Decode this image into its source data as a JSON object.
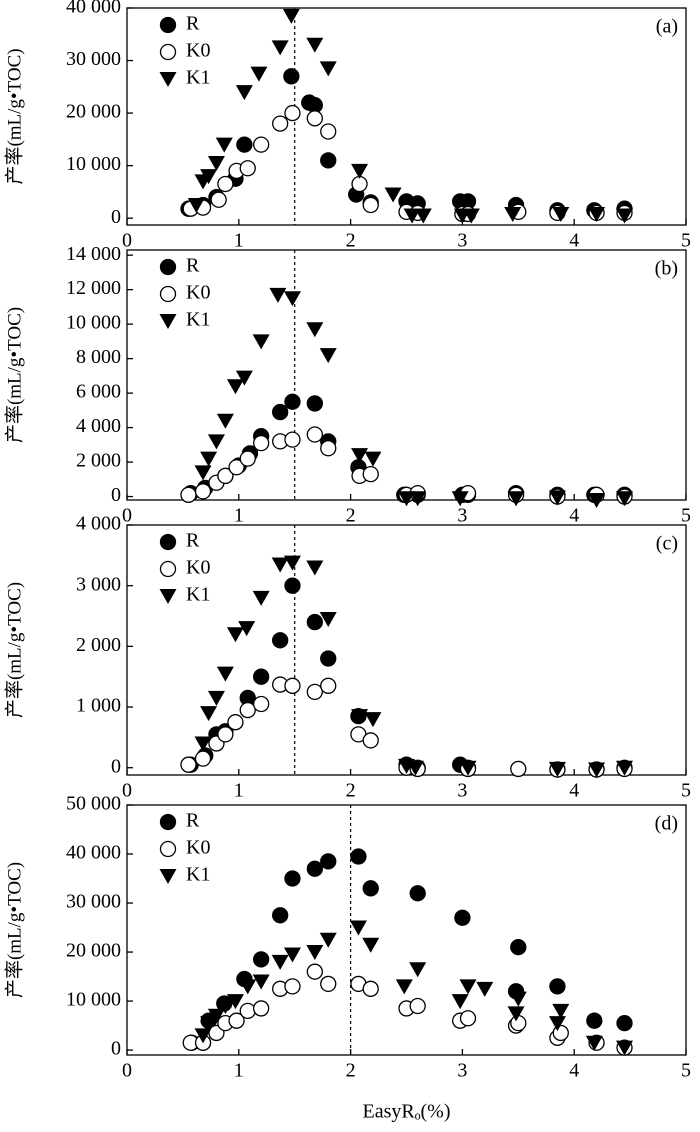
{
  "chart_data": [
    {
      "type": "scatter",
      "label": "(a)",
      "ylabel": "产率(mL/g•TOC)",
      "xlim": [
        0,
        5
      ],
      "ylim": [
        -1300,
        40000
      ],
      "xticks": [
        0,
        1,
        2,
        3,
        4,
        5
      ],
      "yticks": [
        0,
        {
          "value": 10000,
          "label": "10 000"
        },
        {
          "value": 20000,
          "label": "20 000"
        },
        {
          "value": 30000,
          "label": "30 000"
        },
        {
          "value": 40000,
          "label": "40 000"
        }
      ],
      "vline": 1.5,
      "series": [
        {
          "name": "R",
          "marker": "filled-circle",
          "color": "#000000",
          "x": [
            0.55,
            0.68,
            0.8,
            0.97,
            1.05,
            1.47,
            1.63,
            1.68,
            1.8,
            2.05,
            2.18,
            2.5,
            2.6,
            2.98,
            3.05,
            3.48,
            3.85,
            4.18,
            4.45
          ],
          "values": [
            1800,
            2500,
            4000,
            7500,
            14000,
            27000,
            22000,
            21500,
            11000,
            4500,
            3000,
            3200,
            2800,
            3200,
            3200,
            2500,
            1500,
            1500,
            1800
          ]
        },
        {
          "name": "K0",
          "marker": "open-circle",
          "color": "#000000",
          "x": [
            0.57,
            0.68,
            0.82,
            0.88,
            0.98,
            1.08,
            1.2,
            1.37,
            1.48,
            1.68,
            1.8,
            2.08,
            2.18,
            2.5,
            2.6,
            3.0,
            3.05,
            3.5,
            3.85,
            4.2,
            4.45
          ],
          "values": [
            1800,
            2000,
            3500,
            6500,
            9000,
            9500,
            14000,
            18000,
            20000,
            19000,
            16500,
            6500,
            2500,
            1200,
            1000,
            800,
            800,
            1200,
            1000,
            1000,
            1000
          ]
        },
        {
          "name": "K1",
          "marker": "down-triangle",
          "color": "#000000",
          "x": [
            0.62,
            0.68,
            0.73,
            0.8,
            0.87,
            1.05,
            1.18,
            1.37,
            1.47,
            1.68,
            1.8,
            2.08,
            2.38,
            2.55,
            2.65,
            3.0,
            3.08,
            3.45,
            3.88,
            4.2,
            4.45
          ],
          "values": [
            2500,
            7000,
            8000,
            10500,
            14000,
            24000,
            27500,
            32500,
            38500,
            33000,
            28500,
            9000,
            4500,
            500,
            500,
            500,
            500,
            800,
            800,
            800,
            500
          ]
        }
      ]
    },
    {
      "type": "scatter",
      "label": "(b)",
      "ylabel": "产率(mL/g•TOC)",
      "xlim": [
        0,
        5
      ],
      "ylim": [
        -200,
        14300
      ],
      "xticks": [
        0,
        1,
        2,
        3,
        4,
        5
      ],
      "yticks": [
        0,
        {
          "value": 2000,
          "label": "2 000"
        },
        {
          "value": 4000,
          "label": "4 000"
        },
        {
          "value": 6000,
          "label": "6 000"
        },
        {
          "value": 8000,
          "label": "8 000"
        },
        {
          "value": 10000,
          "label": "10 000"
        },
        {
          "value": 12000,
          "label": "12 000"
        },
        {
          "value": 14000,
          "label": "14 000"
        }
      ],
      "vline": 1.5,
      "series": [
        {
          "name": "R",
          "marker": "filled-circle",
          "color": "#000000",
          "x": [
            0.57,
            0.7,
            0.88,
            1.0,
            1.1,
            1.2,
            1.37,
            1.48,
            1.68,
            1.8,
            2.07,
            2.48,
            2.6,
            3.0,
            3.05,
            3.48,
            3.85,
            4.18,
            4.45
          ],
          "values": [
            200,
            500,
            1200,
            1800,
            2500,
            3500,
            4900,
            5500,
            5400,
            3200,
            1700,
            100,
            100,
            100,
            100,
            200,
            100,
            100,
            100
          ]
        },
        {
          "name": "K0",
          "marker": "open-circle",
          "color": "#000000",
          "x": [
            0.55,
            0.68,
            0.8,
            0.88,
            0.98,
            1.08,
            1.2,
            1.37,
            1.48,
            1.68,
            1.8,
            2.08,
            2.18,
            2.5,
            2.6,
            3.05,
            3.48,
            3.85,
            4.2,
            4.45
          ],
          "values": [
            100,
            300,
            800,
            1200,
            1700,
            2200,
            3100,
            3200,
            3300,
            3600,
            2800,
            1200,
            1300,
            100,
            200,
            200,
            100,
            0,
            100,
            0
          ]
        },
        {
          "name": "K1",
          "marker": "down-triangle",
          "color": "#000000",
          "x": [
            0.68,
            0.73,
            0.8,
            0.88,
            0.97,
            1.05,
            1.2,
            1.35,
            1.48,
            1.68,
            1.8,
            2.08,
            2.2,
            2.5,
            2.6,
            2.98,
            3.48,
            3.85,
            4.2,
            4.45
          ],
          "values": [
            1400,
            2200,
            3200,
            4400,
            6400,
            6900,
            9000,
            11700,
            11500,
            9700,
            8200,
            2400,
            2200,
            -100,
            -100,
            -100,
            -100,
            -50,
            -200,
            -100
          ]
        }
      ]
    },
    {
      "type": "scatter",
      "label": "(c)",
      "ylabel": "产率(mL/g•TOC)",
      "xlim": [
        0,
        5
      ],
      "ylim": [
        -120,
        4000
      ],
      "xticks": [
        0,
        1,
        2,
        3,
        4,
        5
      ],
      "yticks": [
        0,
        {
          "value": 1000,
          "label": "1 000"
        },
        {
          "value": 2000,
          "label": "2 000"
        },
        {
          "value": 3000,
          "label": "3 000"
        },
        {
          "value": 4000,
          "label": "4 000"
        }
      ],
      "vline": 1.5,
      "series": [
        {
          "name": "R",
          "marker": "filled-circle",
          "color": "#000000",
          "x": [
            0.57,
            0.7,
            0.8,
            0.88,
            1.08,
            1.2,
            1.37,
            1.48,
            1.68,
            1.8,
            2.07,
            2.5,
            2.6,
            2.98,
            3.05,
            3.85,
            4.2,
            4.45
          ],
          "values": [
            50,
            200,
            550,
            600,
            1150,
            1500,
            2100,
            3000,
            2400,
            1800,
            850,
            50,
            0,
            50,
            0,
            -30,
            -30,
            0
          ]
        },
        {
          "name": "K0",
          "marker": "open-circle",
          "color": "#000000",
          "x": [
            0.55,
            0.68,
            0.8,
            0.88,
            0.97,
            1.08,
            1.2,
            1.37,
            1.48,
            1.68,
            1.8,
            2.07,
            2.18,
            2.5,
            2.6,
            3.05,
            3.5,
            3.85,
            4.2,
            4.45
          ],
          "values": [
            50,
            150,
            400,
            550,
            750,
            950,
            1050,
            1370,
            1350,
            1250,
            1350,
            550,
            450,
            0,
            -20,
            -20,
            -20,
            -30,
            -30,
            -20
          ]
        },
        {
          "name": "K1",
          "marker": "down-triangle",
          "color": "#000000",
          "x": [
            0.68,
            0.73,
            0.8,
            0.88,
            0.97,
            1.07,
            1.2,
            1.37,
            1.48,
            1.68,
            1.8,
            2.08,
            2.2,
            2.5,
            2.58,
            3.05,
            3.85,
            4.2,
            4.45
          ],
          "values": [
            400,
            900,
            1150,
            1550,
            2200,
            2300,
            2800,
            3350,
            3380,
            3300,
            2450,
            850,
            800,
            30,
            0,
            0,
            -20,
            -30,
            0
          ]
        }
      ]
    },
    {
      "type": "scatter",
      "label": "(d)",
      "ylabel": "产率(mL/g•TOC)",
      "xlabel": "EasyRₒ(%)",
      "xlim": [
        0,
        5
      ],
      "ylim": [
        -1000,
        50000
      ],
      "xticks": [
        0,
        1,
        2,
        3,
        4,
        5
      ],
      "yticks": [
        0,
        {
          "value": 10000,
          "label": "10 000"
        },
        {
          "value": 20000,
          "label": "20 000"
        },
        {
          "value": 30000,
          "label": "30 000"
        },
        {
          "value": 40000,
          "label": "40 000"
        },
        {
          "value": 50000,
          "label": "50 000"
        }
      ],
      "vline": 2,
      "series": [
        {
          "name": "R",
          "marker": "filled-circle",
          "color": "#000000",
          "x": [
            0.58,
            0.68,
            0.73,
            0.87,
            1.05,
            1.2,
            1.37,
            1.48,
            1.68,
            1.8,
            2.07,
            2.18,
            2.6,
            3.0,
            3.48,
            3.5,
            3.85,
            4.18,
            4.45
          ],
          "values": [
            1500,
            1500,
            6000,
            9500,
            14500,
            18500,
            27500,
            35000,
            37000,
            38500,
            39500,
            33000,
            32000,
            27000,
            12000,
            21000,
            13000,
            6000,
            5500
          ]
        },
        {
          "name": "K0",
          "marker": "open-circle",
          "color": "#000000",
          "x": [
            0.57,
            0.68,
            0.8,
            0.88,
            0.98,
            1.08,
            1.2,
            1.37,
            1.48,
            1.68,
            1.8,
            2.07,
            2.18,
            2.5,
            2.6,
            2.98,
            3.05,
            3.48,
            3.5,
            3.85,
            3.88,
            4.2,
            4.45
          ],
          "values": [
            1500,
            1500,
            3500,
            5500,
            6000,
            8000,
            8500,
            12500,
            13000,
            16000,
            13500,
            13500,
            12500,
            8500,
            9000,
            6000,
            6500,
            5000,
            5500,
            2500,
            3500,
            1500,
            500
          ]
        },
        {
          "name": "K1",
          "marker": "down-triangle",
          "color": "#000000",
          "x": [
            0.68,
            0.73,
            0.8,
            0.88,
            0.97,
            1.08,
            1.2,
            1.37,
            1.48,
            1.68,
            1.8,
            2.07,
            2.18,
            2.48,
            2.6,
            2.98,
            3.05,
            3.2,
            3.48,
            3.5,
            3.85,
            3.88,
            4.18,
            4.45
          ],
          "values": [
            3000,
            5500,
            7000,
            9000,
            10000,
            13000,
            14000,
            18000,
            19500,
            20000,
            22500,
            25000,
            21500,
            13000,
            16500,
            10000,
            13000,
            12500,
            7500,
            10500,
            5500,
            8000,
            1500,
            500
          ]
        }
      ]
    }
  ]
}
